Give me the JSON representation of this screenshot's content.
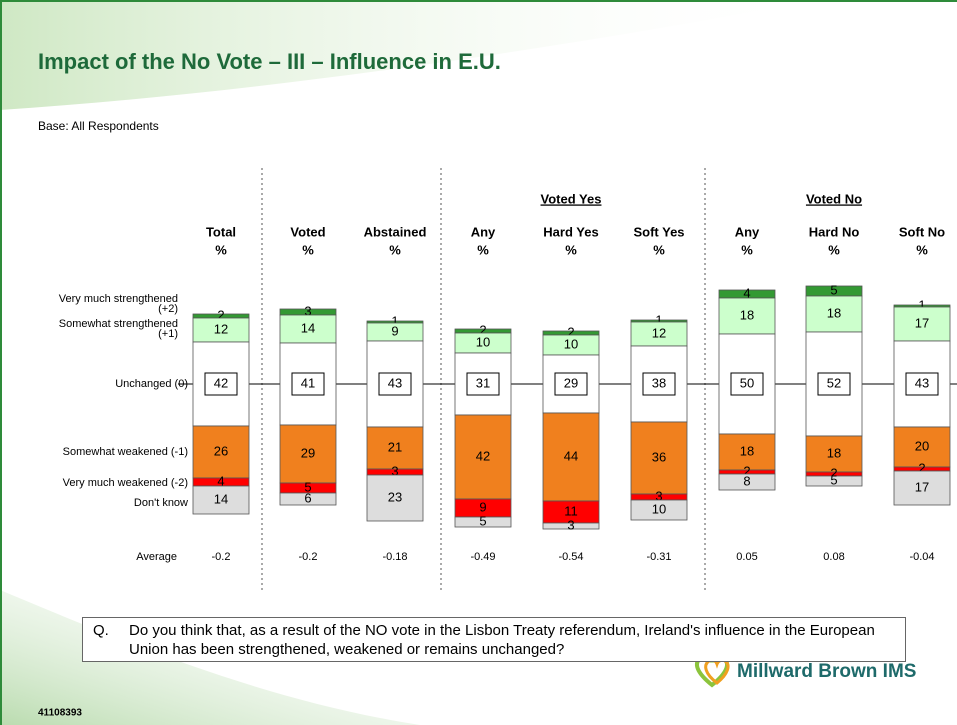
{
  "chart_data": {
    "type": "bar",
    "title": "Impact of the No Vote – III – Influence in E.U.",
    "subtitle": "Base: All Respondents",
    "categories": [
      "Total",
      "Voted",
      "Abstained",
      "Any",
      "Hard Yes",
      "Soft Yes",
      "Any",
      "Hard No",
      "Soft No"
    ],
    "unit": "%",
    "group_labels": [
      null,
      null,
      null,
      null,
      "Voted Yes",
      null,
      null,
      "Voted No",
      null
    ],
    "series": [
      {
        "name": "Very much strengthened (+2)",
        "color": "#339933",
        "values": [
          2,
          3,
          1,
          2,
          2,
          1,
          4,
          5,
          1
        ]
      },
      {
        "name": "Somewhat strengthened (+1)",
        "color": "#ccffcc",
        "values": [
          12,
          14,
          9,
          10,
          10,
          12,
          18,
          18,
          17
        ]
      },
      {
        "name": "Unchanged (0)",
        "color": "#ffffff",
        "values": [
          42,
          41,
          43,
          31,
          29,
          38,
          50,
          52,
          43
        ]
      },
      {
        "name": "Somewhat weakened (-1)",
        "color": "#f0801e",
        "values": [
          26,
          29,
          21,
          42,
          44,
          36,
          18,
          18,
          20
        ]
      },
      {
        "name": "Very much weakened (-2)",
        "color": "#ff0000",
        "values": [
          4,
          5,
          3,
          9,
          11,
          3,
          2,
          2,
          2
        ]
      },
      {
        "name": "Don't know",
        "color": "#dddddd",
        "values": [
          14,
          6,
          23,
          5,
          3,
          10,
          8,
          5,
          17
        ]
      }
    ],
    "averages": {
      "label": "Average",
      "values": [
        -0.2,
        -0.2,
        -0.18,
        -0.49,
        -0.54,
        -0.31,
        0.05,
        0.08,
        -0.04
      ]
    }
  },
  "question": {
    "marker": "Q.",
    "text": "Do you think that, as a result of the NO vote in the Lisbon Treaty referendum, Ireland's influence in the European Union has been strengthened, weakened or remains unchanged?"
  },
  "logo": "Millward Brown IMS",
  "footer_code": "41108393"
}
